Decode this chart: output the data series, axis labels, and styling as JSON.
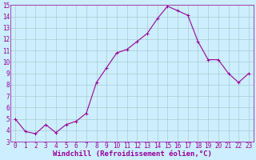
{
  "x": [
    0,
    1,
    2,
    3,
    4,
    5,
    6,
    7,
    8,
    9,
    10,
    11,
    12,
    13,
    14,
    15,
    16,
    17,
    18,
    19,
    20,
    21,
    22,
    23
  ],
  "y": [
    5.0,
    3.9,
    3.7,
    4.5,
    3.8,
    4.5,
    4.8,
    5.5,
    8.2,
    9.5,
    10.8,
    11.1,
    11.8,
    12.5,
    13.8,
    14.9,
    14.5,
    14.1,
    11.8,
    10.2,
    10.2,
    9.0,
    8.2,
    9.0
  ],
  "line_color": "#990099",
  "marker": "+",
  "marker_size": 3,
  "marker_linewidth": 0.7,
  "line_width": 0.8,
  "bg_color": "#cceeff",
  "grid_color": "#aacccc",
  "xlabel": "Windchill (Refroidissement éolien,°C)",
  "xlabel_color": "#990099",
  "tick_color": "#990099",
  "ylim": [
    3,
    15
  ],
  "xlim": [
    -0.5,
    23.5
  ],
  "yticks": [
    3,
    4,
    5,
    6,
    7,
    8,
    9,
    10,
    11,
    12,
    13,
    14,
    15
  ],
  "xticks": [
    0,
    1,
    2,
    3,
    4,
    5,
    6,
    7,
    8,
    9,
    10,
    11,
    12,
    13,
    14,
    15,
    16,
    17,
    18,
    19,
    20,
    21,
    22,
    23
  ],
  "tick_fontsize": 5.5,
  "xlabel_fontsize": 6.5
}
